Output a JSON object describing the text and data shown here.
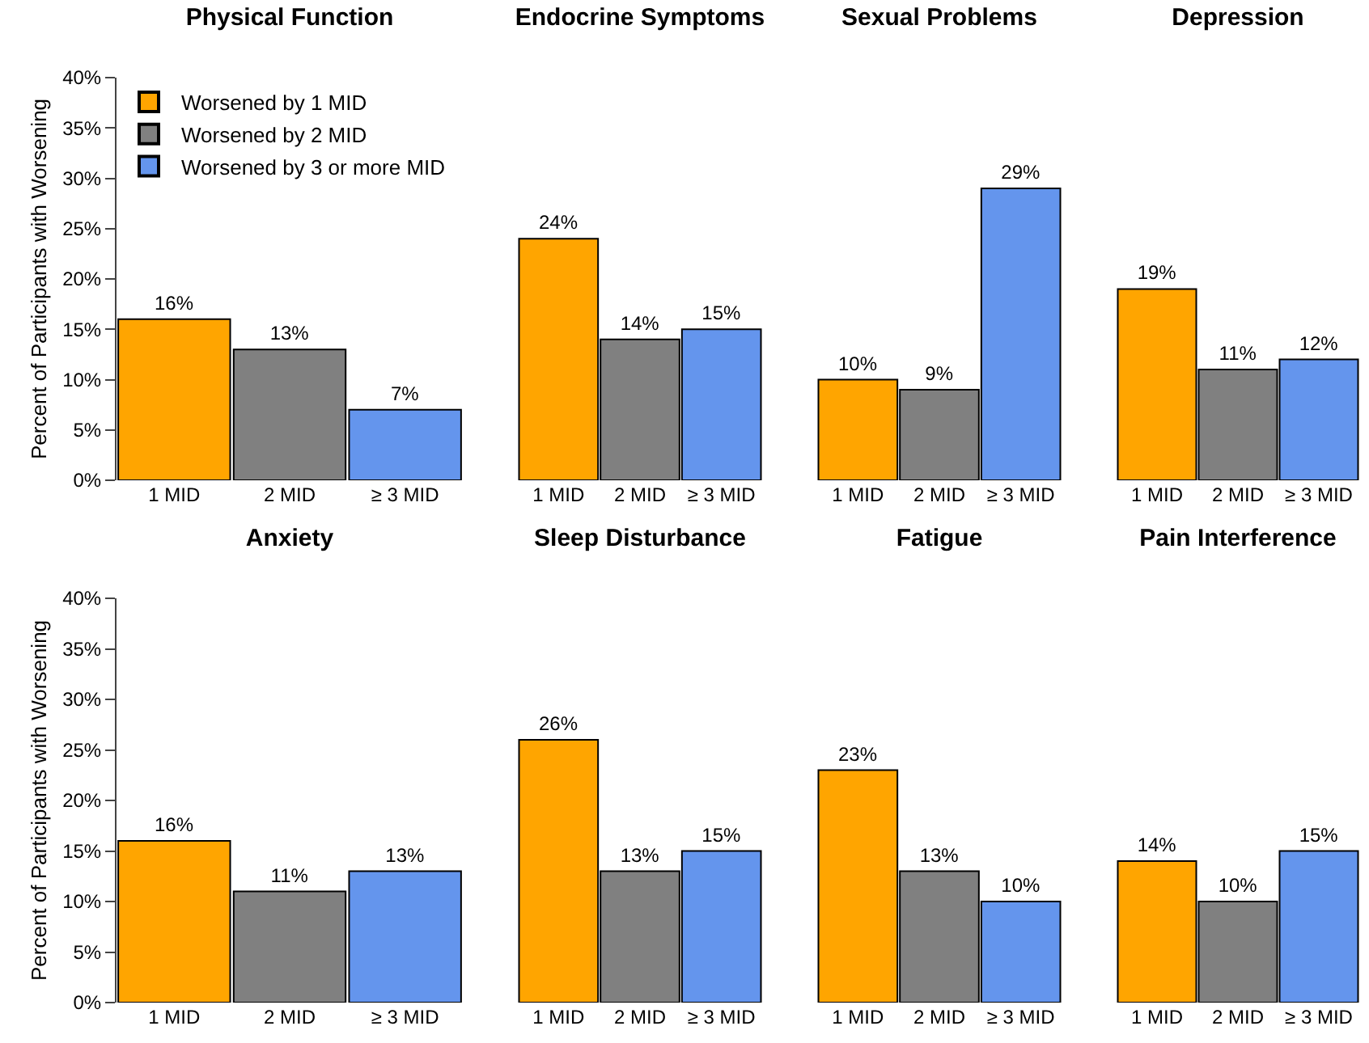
{
  "chart_data": [
    {
      "type": "bar",
      "title": "Physical Function",
      "ylabel": "Percent of Participants with Worsening",
      "categories": [
        "1 MID",
        "2 MID",
        "≥ 3 MID"
      ],
      "ylim": [
        0,
        40
      ],
      "yticks": [
        {
          "value": 0,
          "label": "0%"
        },
        {
          "value": 5,
          "label": "5%"
        },
        {
          "value": 10,
          "label": "10%"
        },
        {
          "value": 15,
          "label": "15%"
        },
        {
          "value": 20,
          "label": "20%"
        },
        {
          "value": 25,
          "label": "25%"
        },
        {
          "value": 30,
          "label": "30%"
        },
        {
          "value": 35,
          "label": "35%"
        },
        {
          "value": 40,
          "label": "40%"
        }
      ],
      "legend": "top left",
      "series": [
        {
          "name": "Worsened by 1 MID",
          "color": "#ffa500",
          "values": [
            16,
            null,
            null
          ],
          "value_labels": [
            "16%",
            null,
            null
          ]
        },
        {
          "name": "Worsened by 2 MID",
          "color": "#808080",
          "values": [
            null,
            13,
            null
          ],
          "value_labels": [
            null,
            "13%",
            null
          ]
        },
        {
          "name": "Worsened by 3 or more MID",
          "color": "#6495ed",
          "values": [
            null,
            null,
            7
          ],
          "value_labels": [
            null,
            null,
            "7%"
          ]
        }
      ]
    },
    {
      "type": "bar",
      "title": "Endocrine Symptoms",
      "categories": [
        "1 MID",
        "2 MID",
        "≥ 3 MID"
      ],
      "ylim": [
        0,
        40
      ],
      "tick_labels": "x",
      "series": [
        {
          "color": "#ffa500",
          "values": [
            24,
            null,
            null
          ],
          "value_labels": [
            "24%",
            null,
            null
          ]
        },
        {
          "color": "#808080",
          "values": [
            null,
            14,
            null
          ],
          "value_labels": [
            null,
            "14%",
            null
          ]
        },
        {
          "color": "#6495ed",
          "values": [
            null,
            null,
            15
          ],
          "value_labels": [
            null,
            null,
            "15%"
          ]
        }
      ]
    },
    {
      "type": "bar",
      "title": "Sexual Problems",
      "categories": [
        "1 MID",
        "2 MID",
        "≥ 3 MID"
      ],
      "ylim": [
        0,
        40
      ],
      "tick_labels": "x",
      "series": [
        {
          "color": "#ffa500",
          "values": [
            10,
            null,
            null
          ],
          "value_labels": [
            "10%",
            null,
            null
          ]
        },
        {
          "color": "#808080",
          "values": [
            null,
            9,
            null
          ],
          "value_labels": [
            null,
            "9%",
            null
          ]
        },
        {
          "color": "#6495ed",
          "values": [
            null,
            null,
            29
          ],
          "value_labels": [
            null,
            null,
            "29%"
          ]
        }
      ]
    },
    {
      "type": "bar",
      "title": "Depression",
      "categories": [
        "1 MID",
        "2 MID",
        "≥ 3 MID"
      ],
      "ylim": [
        0,
        40
      ],
      "tick_labels": "x",
      "series": [
        {
          "color": "#ffa500",
          "values": [
            19,
            null,
            null
          ],
          "value_labels": [
            "19%",
            null,
            null
          ]
        },
        {
          "color": "#808080",
          "values": [
            null,
            11,
            null
          ],
          "value_labels": [
            null,
            "11%",
            null
          ]
        },
        {
          "color": "#6495ed",
          "values": [
            null,
            null,
            12
          ],
          "value_labels": [
            null,
            null,
            "12%"
          ]
        }
      ]
    },
    {
      "type": "bar",
      "title": "Anxiety",
      "ylabel": "Percent of Participants with Worsening",
      "categories": [
        "1 MID",
        "2 MID",
        "≥ 3 MID"
      ],
      "ylim": [
        0,
        40
      ],
      "yticks": [
        {
          "value": 0,
          "label": "0%"
        },
        {
          "value": 5,
          "label": "5%"
        },
        {
          "value": 10,
          "label": "10%"
        },
        {
          "value": 15,
          "label": "15%"
        },
        {
          "value": 20,
          "label": "20%"
        },
        {
          "value": 25,
          "label": "25%"
        },
        {
          "value": 30,
          "label": "30%"
        },
        {
          "value": 35,
          "label": "35%"
        },
        {
          "value": 40,
          "label": "40%"
        }
      ],
      "series": [
        {
          "color": "#ffa500",
          "values": [
            16,
            null,
            null
          ],
          "value_labels": [
            "16%",
            null,
            null
          ]
        },
        {
          "color": "#808080",
          "values": [
            null,
            11,
            null
          ],
          "value_labels": [
            null,
            "11%",
            null
          ]
        },
        {
          "color": "#6495ed",
          "values": [
            null,
            null,
            13
          ],
          "value_labels": [
            null,
            null,
            "13%"
          ]
        }
      ]
    },
    {
      "type": "bar",
      "title": "Sleep Disturbance",
      "categories": [
        "1 MID",
        "2 MID",
        "≥ 3 MID"
      ],
      "ylim": [
        0,
        40
      ],
      "tick_labels": "x",
      "series": [
        {
          "color": "#ffa500",
          "values": [
            26,
            null,
            null
          ],
          "value_labels": [
            "26%",
            null,
            null
          ]
        },
        {
          "color": "#808080",
          "values": [
            null,
            13,
            null
          ],
          "value_labels": [
            null,
            "13%",
            null
          ]
        },
        {
          "color": "#6495ed",
          "values": [
            null,
            null,
            15
          ],
          "value_labels": [
            null,
            null,
            "15%"
          ]
        }
      ]
    },
    {
      "type": "bar",
      "title": "Fatigue",
      "categories": [
        "1 MID",
        "2 MID",
        "≥ 3 MID"
      ],
      "ylim": [
        0,
        40
      ],
      "tick_labels": "x",
      "series": [
        {
          "color": "#ffa500",
          "values": [
            23,
            null,
            null
          ],
          "value_labels": [
            "23%",
            null,
            null
          ]
        },
        {
          "color": "#808080",
          "values": [
            null,
            13,
            null
          ],
          "value_labels": [
            null,
            "13%",
            null
          ]
        },
        {
          "color": "#6495ed",
          "values": [
            null,
            null,
            10
          ],
          "value_labels": [
            null,
            null,
            "10%"
          ]
        }
      ]
    },
    {
      "type": "bar",
      "title": "Pain Interference",
      "categories": [
        "1 MID",
        "2 MID",
        "≥ 3 MID"
      ],
      "ylim": [
        0,
        40
      ],
      "tick_labels": "x",
      "series": [
        {
          "color": "#ffa500",
          "values": [
            14,
            null,
            null
          ],
          "value_labels": [
            "14%",
            null,
            null
          ]
        },
        {
          "color": "#808080",
          "values": [
            null,
            10,
            null
          ],
          "value_labels": [
            null,
            "10%",
            null
          ]
        },
        {
          "color": "#6495ed",
          "values": [
            null,
            null,
            15
          ],
          "value_labels": [
            null,
            null,
            "15%"
          ]
        }
      ]
    }
  ]
}
